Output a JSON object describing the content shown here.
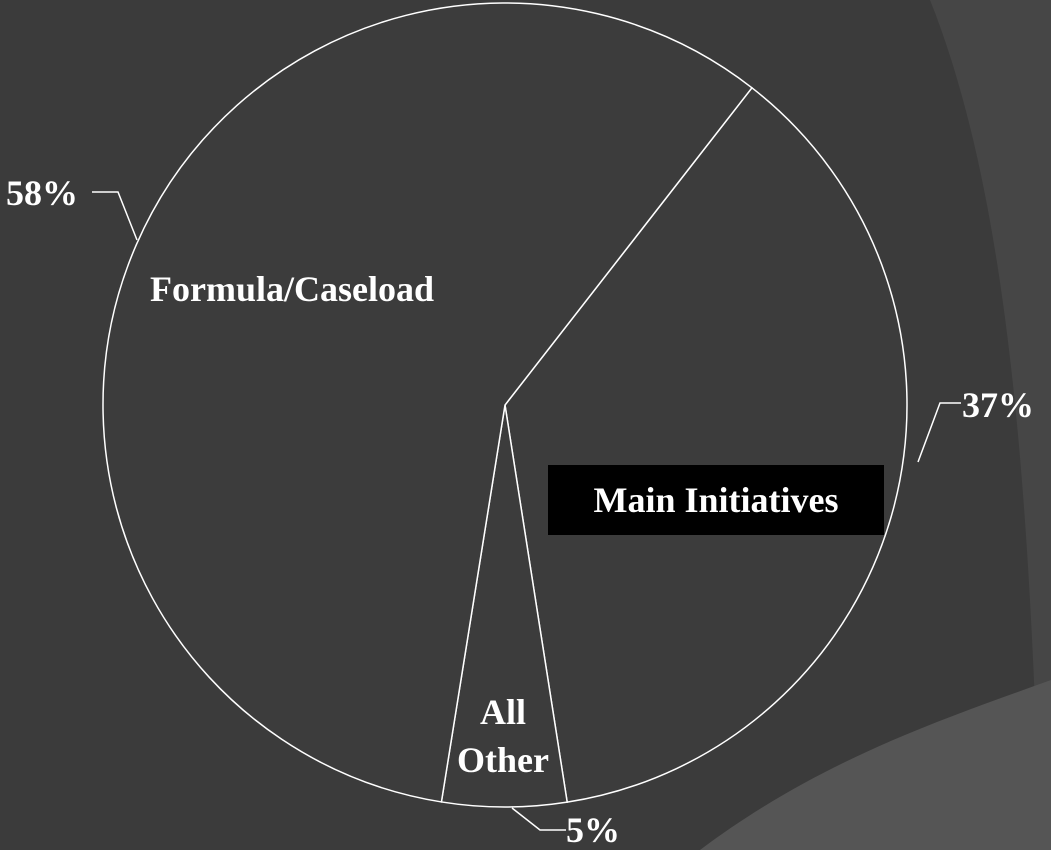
{
  "chart_data": {
    "type": "pie",
    "categories": [
      "Main Initiatives",
      "All Other",
      "Formula/Caseload"
    ],
    "values": [
      37,
      5,
      58
    ],
    "value_labels": [
      "37%",
      "5%",
      "58%"
    ],
    "colors": [
      "#3c3c3c",
      "#3c3c3c",
      "#3c3c3c"
    ]
  }
}
